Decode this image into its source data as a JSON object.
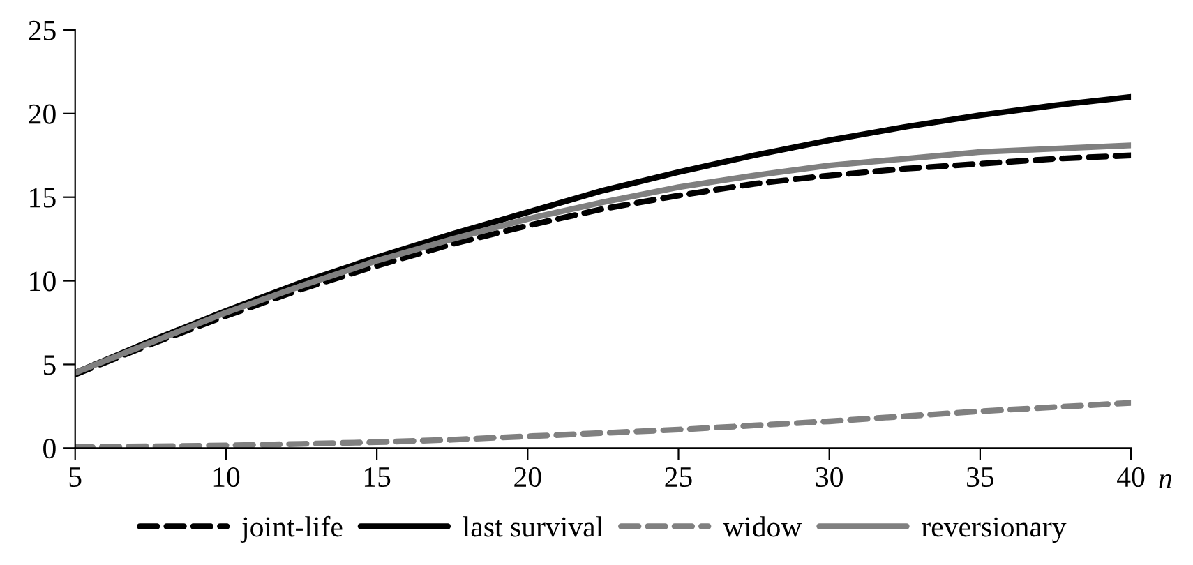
{
  "chart_data": {
    "type": "line",
    "xlabel": "n",
    "x": [
      5,
      7.5,
      10,
      12.5,
      15,
      17.5,
      20,
      22.5,
      25,
      27.5,
      30,
      32.5,
      35,
      37.5,
      40
    ],
    "series": [
      {
        "name": "joint-life",
        "color": "#000000",
        "line_style": "dashed",
        "values": [
          4.4,
          6.2,
          7.9,
          9.5,
          10.9,
          12.2,
          13.3,
          14.3,
          15.1,
          15.8,
          16.3,
          16.7,
          17.0,
          17.3,
          17.5
        ]
      },
      {
        "name": "last survival",
        "color": "#000000",
        "line_style": "solid",
        "values": [
          4.5,
          6.4,
          8.2,
          9.9,
          11.4,
          12.8,
          14.1,
          15.4,
          16.5,
          17.5,
          18.4,
          19.2,
          19.9,
          20.5,
          21.0
        ]
      },
      {
        "name": "widow",
        "color": "#808080",
        "line_style": "dashed",
        "values": [
          0.05,
          0.1,
          0.15,
          0.25,
          0.35,
          0.5,
          0.7,
          0.9,
          1.1,
          1.35,
          1.6,
          1.9,
          2.2,
          2.45,
          2.7
        ]
      },
      {
        "name": "reversionary",
        "color": "#808080",
        "line_style": "solid",
        "values": [
          4.5,
          6.3,
          8.1,
          9.7,
          11.2,
          12.5,
          13.7,
          14.7,
          15.6,
          16.3,
          16.9,
          17.3,
          17.7,
          17.9,
          18.1
        ]
      }
    ],
    "xlim": [
      5,
      40
    ],
    "xticks": [
      5,
      10,
      15,
      20,
      25,
      30,
      35,
      40
    ],
    "ylim": [
      0,
      25
    ],
    "yticks": [
      0,
      5,
      10,
      15,
      20,
      25
    ],
    "grid": false,
    "legend": "bottom",
    "marker": "none"
  }
}
